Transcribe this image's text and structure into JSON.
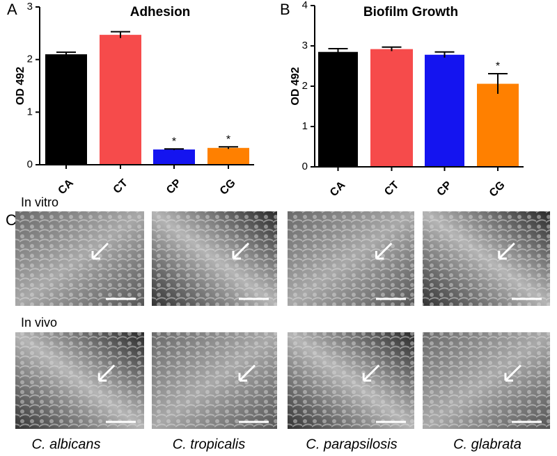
{
  "chart_data": [
    {
      "type": "bar",
      "panel_label": "A",
      "title": "Adhesion",
      "y_label": "OD 492",
      "categories": [
        "CA",
        "CT",
        "CP",
        "CG"
      ],
      "values": [
        2.1,
        2.47,
        0.29,
        0.32
      ],
      "errors": [
        0.04,
        0.06,
        0.01,
        0.02
      ],
      "significance": [
        null,
        null,
        "*",
        "*"
      ],
      "colors": [
        "#000000",
        "#f64b4b",
        "#1414f0",
        "#ff8000"
      ],
      "ylim": [
        0,
        3
      ],
      "yticks": [
        0,
        1,
        2,
        3
      ]
    },
    {
      "type": "bar",
      "panel_label": "B",
      "title": "Biofilm Growth",
      "y_label": "OD 492",
      "categories": [
        "CA",
        "CT",
        "CP",
        "CG"
      ],
      "values": [
        2.85,
        2.92,
        2.78,
        2.06
      ],
      "errors": [
        0.08,
        0.05,
        0.07,
        0.25
      ],
      "significance": [
        null,
        null,
        null,
        "*"
      ],
      "colors": [
        "#000000",
        "#f64b4b",
        "#1414f0",
        "#ff8000"
      ],
      "ylim": [
        0,
        4
      ],
      "yticks": [
        0,
        1,
        2,
        3,
        4
      ]
    }
  ],
  "panel_c": {
    "panel_label": "C",
    "rows": [
      "In vitro",
      "In vivo"
    ],
    "species": [
      "C. albicans",
      "C. tropicalis",
      "C. parapsilosis",
      "C. glabrata"
    ]
  }
}
